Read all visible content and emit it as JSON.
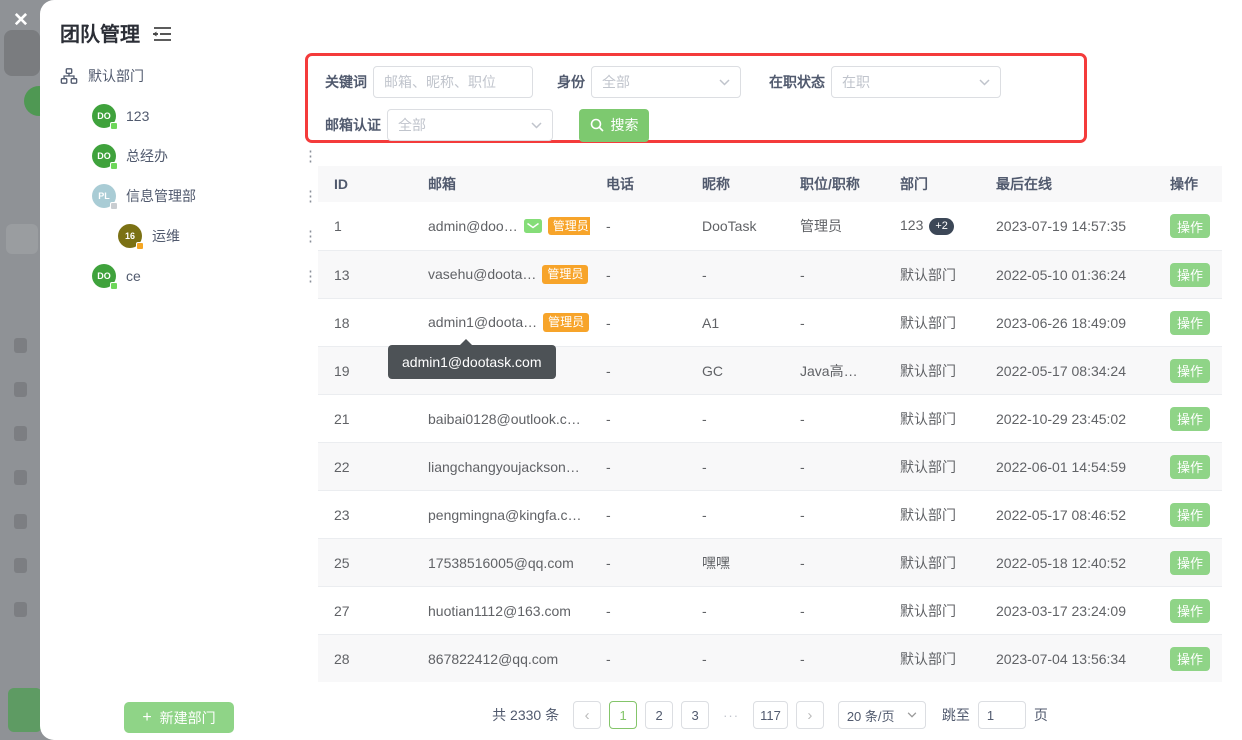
{
  "colors": {
    "primary_green": "#7dc96f",
    "action_green": "#8fd487",
    "admin_orange": "#f7a42a",
    "highlight_red": "#f43b3b",
    "tooltip_bg": "#4d5256",
    "active_page_green": "#84c56a"
  },
  "backdrop": {
    "close_icon": "✕"
  },
  "window": {
    "title": "团队管理"
  },
  "sidebar": {
    "root_label": "默认部门",
    "items": [
      {
        "label": "123",
        "avatar": "DO",
        "indent": 0,
        "avatar_color": "#3fa23c",
        "badge_color": "#6ed75a"
      },
      {
        "label": "总经办",
        "avatar": "DO",
        "indent": 0,
        "avatar_color": "#3fa23c",
        "badge_color": "#6ed75a"
      },
      {
        "label": "信息管理部",
        "avatar": "PL",
        "indent": 0,
        "avatar_color": "#a9ccd5",
        "badge_color": "#c9cdd1"
      },
      {
        "label": "运维",
        "avatar": "16",
        "indent": 1,
        "avatar_color": "#7b7114",
        "badge_color": "#f5a623"
      },
      {
        "label": "ce",
        "avatar": "DO",
        "indent": 0,
        "avatar_color": "#3fa23c",
        "badge_color": "#6ed75a"
      }
    ],
    "new_department_label": "新建部门"
  },
  "filters": {
    "keyword_label": "关键词",
    "keyword_placeholder": "邮箱、昵称、职位",
    "identity_label": "身份",
    "identity_value": "全部",
    "employment_label": "在职状态",
    "employment_value": "在职",
    "email_verify_label": "邮箱认证",
    "email_verify_value": "全部",
    "search_label": "搜索"
  },
  "table": {
    "headers": [
      "ID",
      "邮箱",
      "电话",
      "昵称",
      "职位/职称",
      "部门",
      "最后在线",
      "操作"
    ],
    "admin_badge_label": "管理员",
    "action_label": "操作",
    "rows": [
      {
        "id": "1",
        "email": "admin@doo…",
        "mail_icon": true,
        "admin_badge": true,
        "phone": "-",
        "nickname": "DooTask",
        "position": "管理员",
        "department": "123",
        "dept_badge": "+2",
        "last_online": "2023-07-19 14:57:35"
      },
      {
        "id": "13",
        "email": "vasehu@doota…",
        "mail_icon": false,
        "admin_badge": true,
        "phone": "-",
        "nickname": "-",
        "position": "-",
        "department": "默认部门",
        "dept_badge": "",
        "last_online": "2022-05-10 01:36:24"
      },
      {
        "id": "18",
        "email": "admin1@doota…",
        "mail_icon": false,
        "admin_badge": true,
        "phone": "-",
        "nickname": "A1",
        "position": "-",
        "department": "默认部门",
        "dept_badge": "",
        "last_online": "2023-06-26 18:49:09"
      },
      {
        "id": "19",
        "email": "",
        "mail_icon": false,
        "admin_badge": false,
        "phone": "-",
        "nickname": "GC",
        "position": "Java高…",
        "department": "默认部门",
        "dept_badge": "",
        "last_online": "2022-05-17 08:34:24"
      },
      {
        "id": "21",
        "email": "baibai0128@outlook.c…",
        "mail_icon": false,
        "admin_badge": false,
        "phone": "-",
        "nickname": "-",
        "position": "-",
        "department": "默认部门",
        "dept_badge": "",
        "last_online": "2022-10-29 23:45:02"
      },
      {
        "id": "22",
        "email": "liangchangyoujackson…",
        "mail_icon": false,
        "admin_badge": false,
        "phone": "-",
        "nickname": "-",
        "position": "-",
        "department": "默认部门",
        "dept_badge": "",
        "last_online": "2022-06-01 14:54:59"
      },
      {
        "id": "23",
        "email": "pengmingna@kingfa.c…",
        "mail_icon": false,
        "admin_badge": false,
        "phone": "-",
        "nickname": "-",
        "position": "-",
        "department": "默认部门",
        "dept_badge": "",
        "last_online": "2022-05-17 08:46:52"
      },
      {
        "id": "25",
        "email": "17538516005@qq.com",
        "mail_icon": false,
        "admin_badge": false,
        "phone": "-",
        "nickname": "嘿嘿",
        "position": "-",
        "department": "默认部门",
        "dept_badge": "",
        "last_online": "2022-05-18 12:40:52"
      },
      {
        "id": "27",
        "email": "huotian1112@163.com",
        "mail_icon": false,
        "admin_badge": false,
        "phone": "-",
        "nickname": "-",
        "position": "-",
        "department": "默认部门",
        "dept_badge": "",
        "last_online": "2023-03-17 23:24:09"
      },
      {
        "id": "28",
        "email": "867822412@qq.com",
        "mail_icon": false,
        "admin_badge": false,
        "phone": "-",
        "nickname": "-",
        "position": "-",
        "department": "默认部门",
        "dept_badge": "",
        "last_online": "2023-07-04 13:56:34"
      }
    ]
  },
  "tooltip": {
    "text": "admin1@dootask.com"
  },
  "pagination": {
    "total": "共 2330 条",
    "prev": "‹",
    "next": "›",
    "pages": [
      {
        "label": "1",
        "active": true
      },
      {
        "label": "2"
      },
      {
        "label": "3"
      },
      {
        "label": "···",
        "ellipsis": true
      },
      {
        "label": "117"
      }
    ],
    "page_size": "20 条/页",
    "jump_label": "跳至",
    "jump_value": "1",
    "jump_suffix": "页"
  }
}
